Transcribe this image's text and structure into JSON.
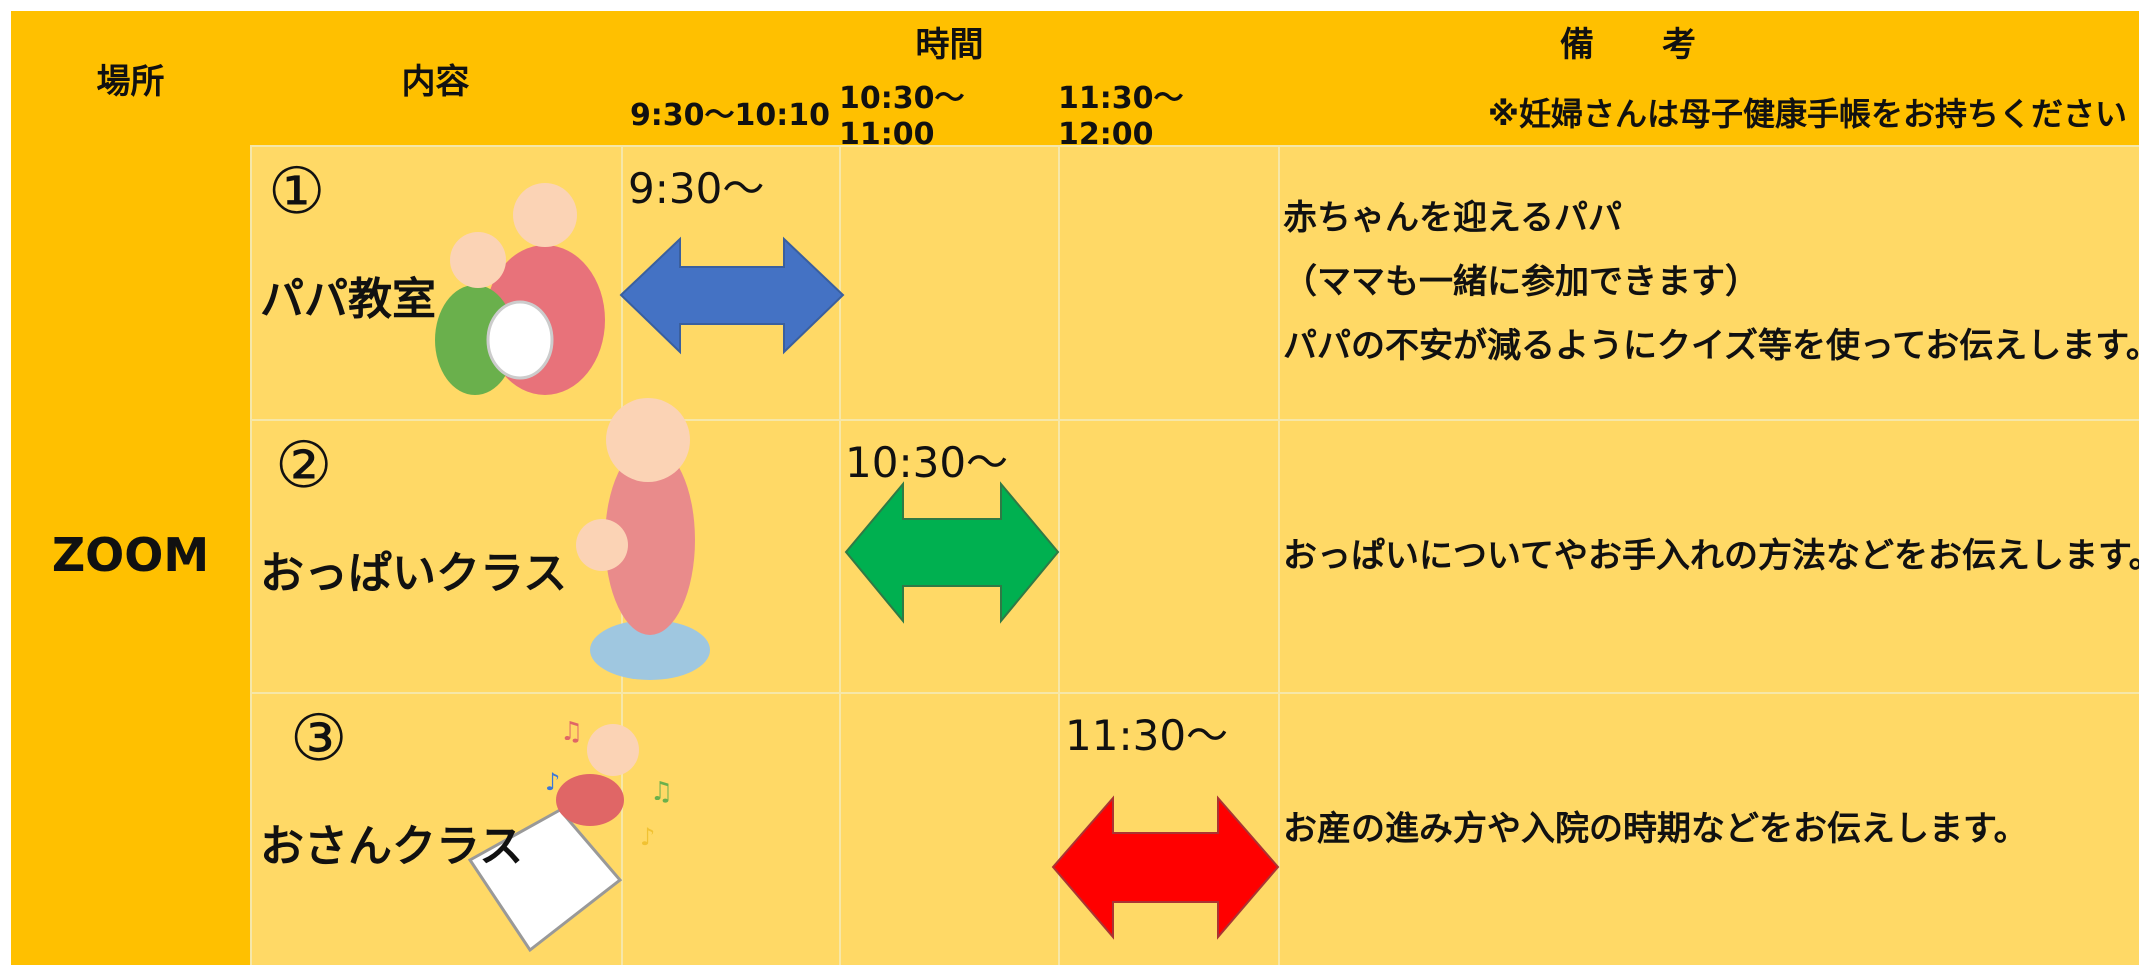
{
  "header": {
    "place": "場所",
    "content": "内容",
    "time": "時間",
    "time_slots": [
      "9:30～10:10",
      "10:30～11:00",
      "11:30～12:00"
    ],
    "remarks": "備　　考",
    "remarks_note": "※妊婦さんは母子健康手帳をお持ちください"
  },
  "place": "ZOOM",
  "rows": [
    {
      "number": "①",
      "title": "パパ教室",
      "start": "9:30～",
      "notes": [
        "赤ちゃんを迎えるパパ",
        "（ママも一緒に参加できます）",
        "パパの不安が減るようにクイズ等を使ってお伝えします。"
      ]
    },
    {
      "number": "②",
      "title": "おっぱいクラス",
      "start": "10:30～",
      "notes": [
        "おっぱいについてやお手入れの方法などをお伝えします。"
      ]
    },
    {
      "number": "③",
      "title": "おさんクラス",
      "start": "11:30～",
      "notes": [
        "お産の進み方や入院の時期などをお伝えします。"
      ]
    }
  ]
}
